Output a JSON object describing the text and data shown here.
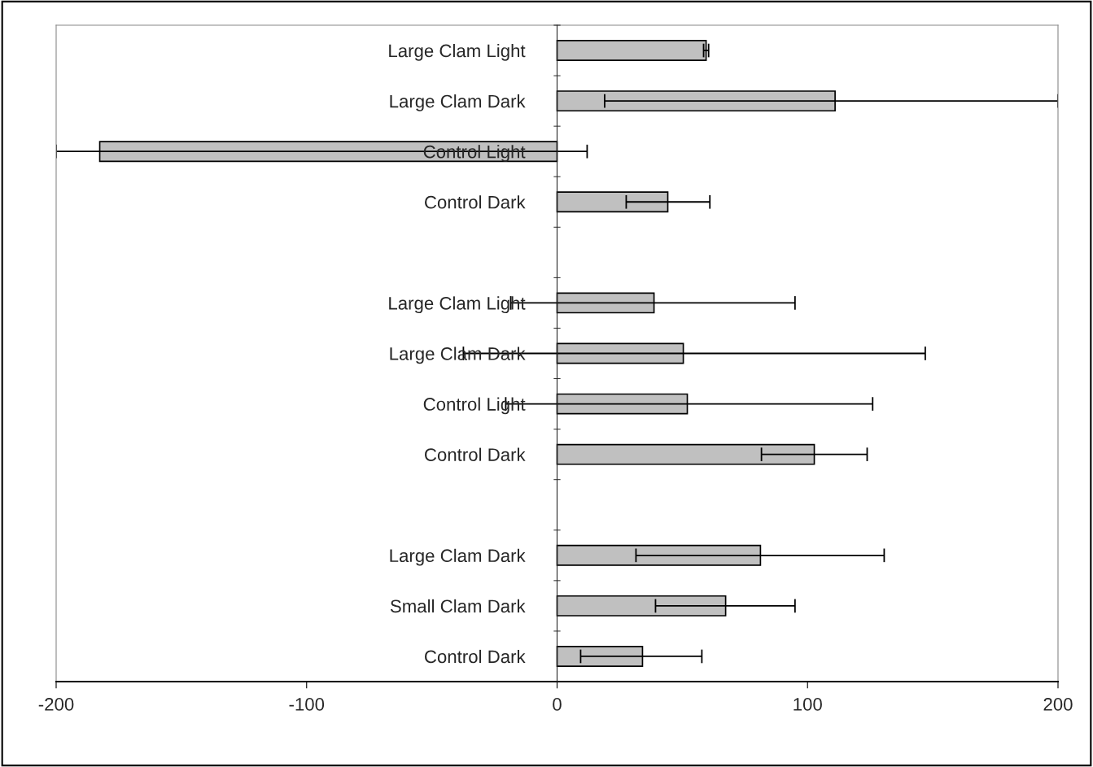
{
  "chart_data": {
    "type": "bar",
    "orientation": "horizontal",
    "categories": [
      "Large Clam Light",
      "Large Clam Dark",
      "Control Light",
      "Control Dark",
      null,
      "Large Clam Light",
      "Large Clam Dark",
      "Control Light",
      "Control Dark",
      null,
      "Large Clam Dark",
      "Small Clam Dark",
      "Control Dark"
    ],
    "values": [
      59.5,
      111,
      -182.6,
      44.2,
      null,
      38.7,
      50.4,
      52,
      102.7,
      null,
      81.2,
      67.3,
      34.1
    ],
    "errors": [
      [
        58.5,
        60.5
      ],
      [
        19,
        200
      ],
      [
        -200,
        12
      ],
      [
        27.6,
        61
      ],
      null,
      [
        -18.5,
        95
      ],
      [
        -37.4,
        147
      ],
      [
        -20.5,
        126
      ],
      [
        81.6,
        123.8
      ],
      null,
      [
        31.5,
        130.6
      ],
      [
        39.3,
        95
      ],
      [
        9.4,
        57.8
      ]
    ],
    "color": "#c0c0c0",
    "xlim": [
      -200,
      200
    ],
    "xticks": [
      -200,
      -100,
      0,
      100,
      200
    ],
    "grid": false,
    "legend": false
  }
}
